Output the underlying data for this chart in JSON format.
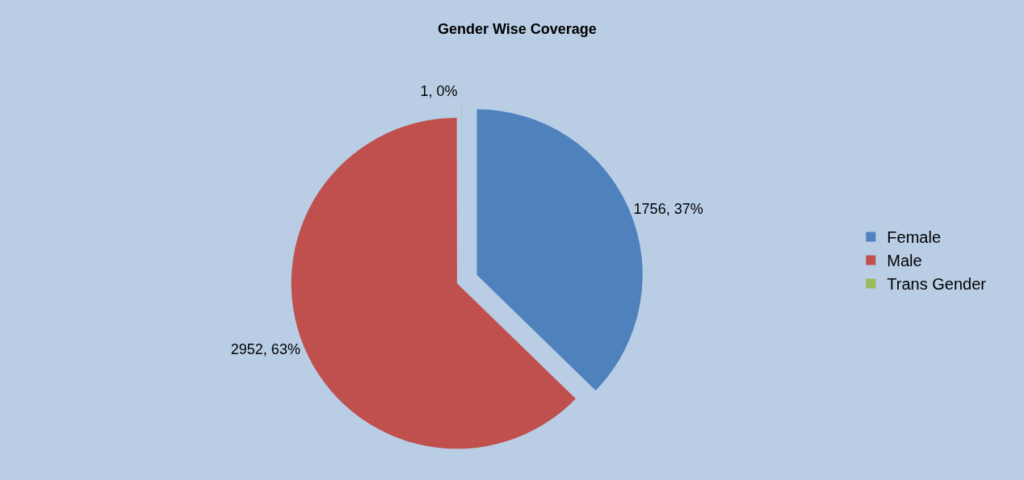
{
  "chart_data": {
    "type": "pie",
    "title": "Gender Wise Coverage",
    "categories": [
      "Female",
      "Male",
      "Trans Gender"
    ],
    "values": [
      1756,
      2952,
      1
    ],
    "colors": [
      "#4f81bd",
      "#c0504d",
      "#9bbb59"
    ],
    "value_labels": [
      "1756, 37%",
      "2952, 63%",
      "1, 0%"
    ],
    "legend": "right"
  }
}
